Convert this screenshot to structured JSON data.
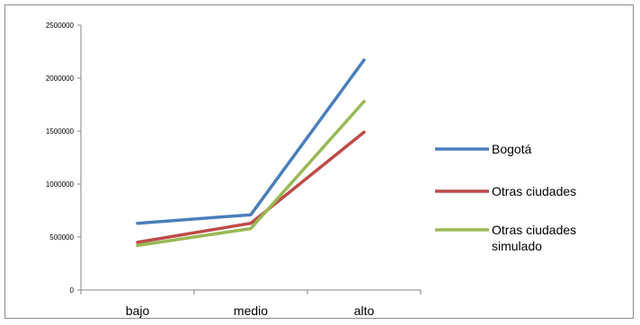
{
  "chart_data": {
    "type": "line",
    "title": "",
    "xlabel": "",
    "ylabel": "",
    "categories": [
      "bajo",
      "medio",
      "alto"
    ],
    "yticks": [
      "0",
      "500000",
      "1000000",
      "1500000",
      "2000000",
      "2500000"
    ],
    "ylim": [
      0,
      2500000
    ],
    "grid": false,
    "legend_position": "right",
    "series": [
      {
        "name": "Bogotá",
        "values": [
          630000,
          710000,
          2170000
        ],
        "color": "#4a7ebb"
      },
      {
        "name": "Otras ciudades",
        "values": [
          450000,
          630000,
          1490000
        ],
        "color": "#be4b48"
      },
      {
        "name": "Otras ciudades simulado",
        "name_lines": [
          "Otras ciudades",
          "simulado"
        ],
        "values": [
          420000,
          580000,
          1780000
        ],
        "color": "#98b954"
      }
    ]
  }
}
